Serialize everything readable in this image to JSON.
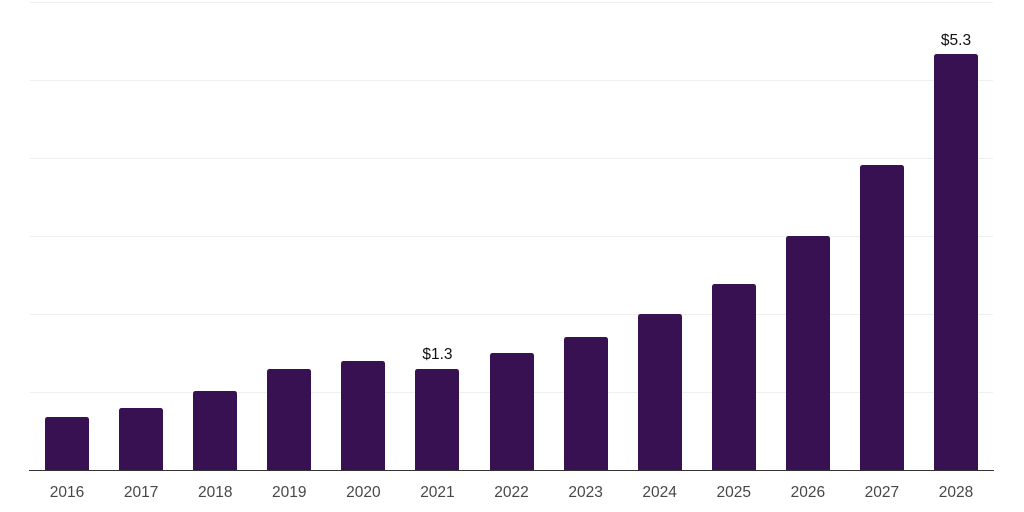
{
  "chart_data": {
    "type": "bar",
    "categories": [
      "2016",
      "2017",
      "2018",
      "2019",
      "2020",
      "2021",
      "2022",
      "2023",
      "2024",
      "2025",
      "2026",
      "2027",
      "2028"
    ],
    "values": [
      0.68,
      0.79,
      1.01,
      1.29,
      1.4,
      1.3,
      1.5,
      1.71,
      2.0,
      2.39,
      3.0,
      3.91,
      5.33
    ],
    "point_labels": [
      "",
      "",
      "",
      "",
      "",
      "$1.3",
      "",
      "",
      "",
      "",
      "",
      "",
      "$5.3"
    ],
    "ylim": [
      0,
      6
    ],
    "gridline_step": 1,
    "grid": true,
    "legend_position": "none",
    "y_axis_tick_labels_visible": false,
    "colors": {
      "bar": "#371151",
      "grid": "#efefef",
      "axis": "#333333",
      "tick_label": "#474747",
      "data_label": "#111111",
      "background": "#ffffff"
    }
  }
}
